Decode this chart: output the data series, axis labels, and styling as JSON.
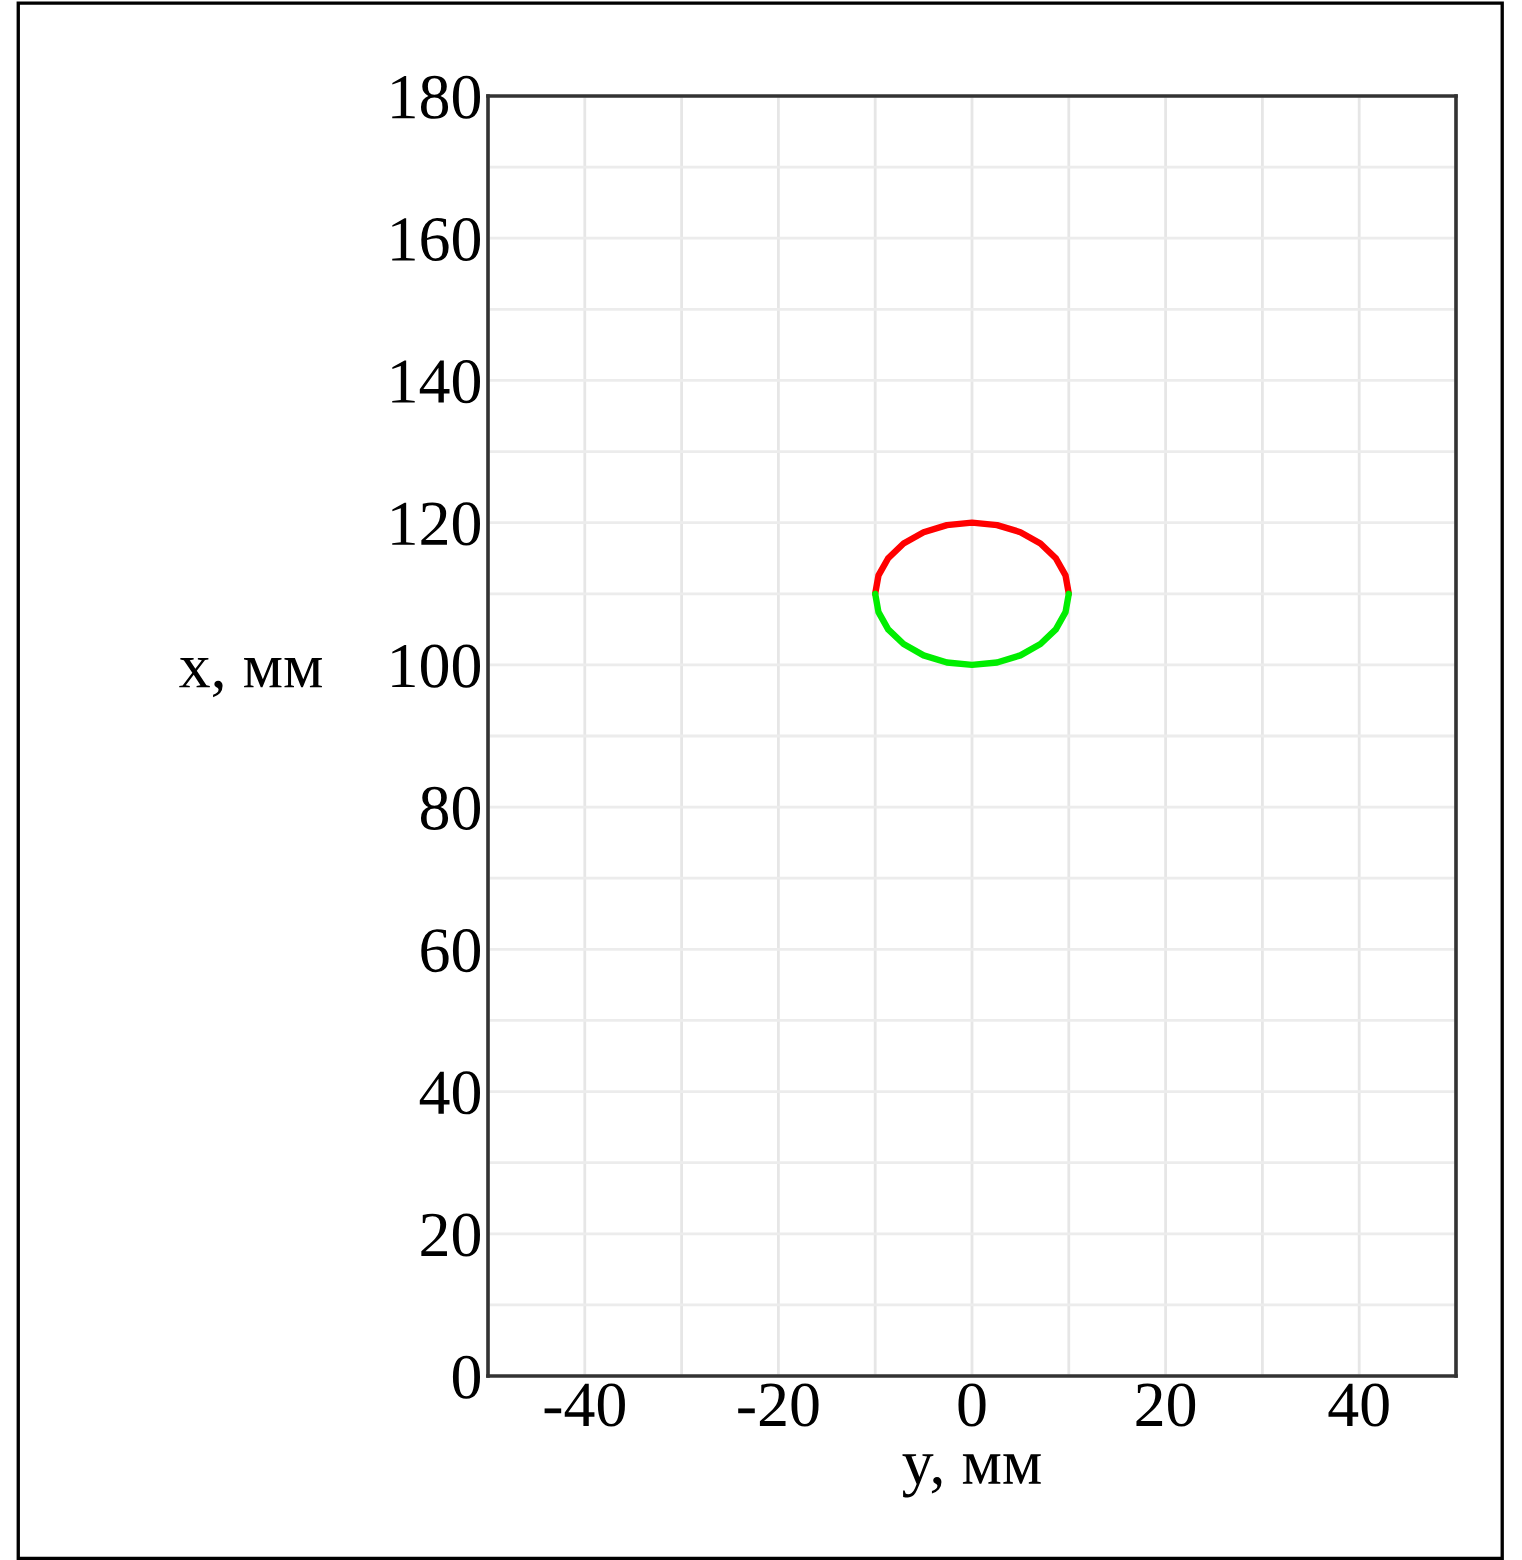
{
  "chart_data": {
    "type": "line",
    "xlabel": "y, мм",
    "ylabel": "x, мм",
    "series": [
      {
        "color": "#ff0000",
        "x": [
          10,
          9.66,
          8.66,
          7.07,
          5,
          2.59,
          0,
          -2.59,
          -5,
          -7.07,
          -8.66,
          -9.66,
          -10
        ],
        "values": [
          110,
          112.59,
          115,
          117.07,
          118.66,
          119.66,
          120,
          119.66,
          118.66,
          117.07,
          115,
          112.59,
          110
        ]
      },
      {
        "color": "#00ee00",
        "x": [
          -10,
          -9.66,
          -8.66,
          -7.07,
          -5,
          -2.59,
          0,
          2.59,
          5,
          7.07,
          8.66,
          9.66,
          10
        ],
        "values": [
          110,
          107.41,
          105,
          102.93,
          101.34,
          100.34,
          100,
          100.34,
          101.34,
          102.93,
          105,
          107.41,
          110
        ]
      }
    ],
    "xlim": [
      -50,
      50
    ],
    "xticks": [
      -40,
      -20,
      0,
      20,
      40
    ],
    "ylim": [
      0,
      180
    ],
    "yticks": [
      0,
      20,
      40,
      60,
      80,
      100,
      120,
      140,
      160,
      180
    ],
    "grid": true,
    "line_style": "solid",
    "marker": "none"
  }
}
